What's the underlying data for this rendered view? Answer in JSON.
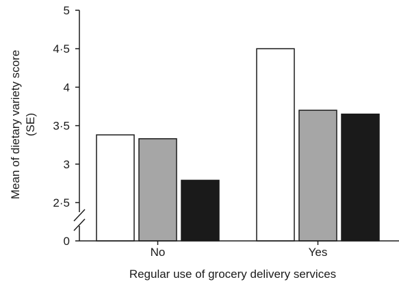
{
  "chart_data": {
    "type": "bar",
    "title": "",
    "xlabel": "Regular use of grocery delivery services",
    "ylabel_line1": "Mean of dietary variety score",
    "ylabel_line2": "(SE)",
    "categories": [
      "No",
      "Yes"
    ],
    "series": [
      {
        "values": [
          3.38,
          4.5
        ],
        "color": "#ffffff"
      },
      {
        "values": [
          3.33,
          3.7
        ],
        "color": "#a6a6a6"
      },
      {
        "values": [
          2.79,
          3.65
        ],
        "color": "#1a1a1a"
      }
    ],
    "yticks": [
      {
        "value": 0,
        "label": "0"
      },
      {
        "value": 2.5,
        "label": "2·5"
      },
      {
        "value": 3,
        "label": "3"
      },
      {
        "value": 3.5,
        "label": "3·5"
      },
      {
        "value": 4,
        "label": "4"
      },
      {
        "value": 4.5,
        "label": "4·5"
      },
      {
        "value": 5,
        "label": "5"
      }
    ],
    "ylim": [
      0,
      5
    ],
    "axis_break": true,
    "grid": false,
    "legend": "none",
    "colors": {
      "axis": "#1a1a1a",
      "bar_outline": "#1a1a1a"
    }
  }
}
